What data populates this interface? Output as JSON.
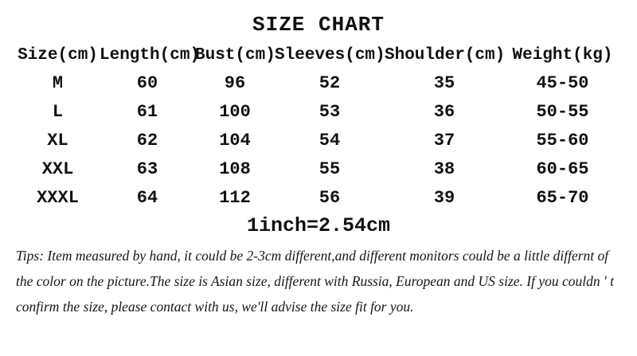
{
  "chart_data": {
    "type": "table",
    "title": "SIZE CHART",
    "columns": [
      "Size(cm)",
      "Length(cm)",
      "Bust(cm)",
      "Sleeves(cm)",
      "Shoulder(cm)",
      "Weight(kg)"
    ],
    "rows": [
      [
        "M",
        "60",
        "96",
        "52",
        "35",
        "45-50"
      ],
      [
        "L",
        "61",
        "100",
        "53",
        "36",
        "50-55"
      ],
      [
        "XL",
        "62",
        "104",
        "54",
        "37",
        "55-60"
      ],
      [
        "XXL",
        "63",
        "108",
        "55",
        "38",
        "60-65"
      ],
      [
        "XXXL",
        "64",
        "112",
        "56",
        "39",
        "65-70"
      ]
    ],
    "conversion_note": "1inch=2.54cm",
    "tips": "Tips: Item measured by hand, it could be 2-3cm different,and different monitors could be a little differnt of the color on the picture.The size is Asian size, different with Russia, European and US size. If you couldn ' t confirm the size, please contact with us, we'll advise the size fit for you."
  },
  "colors": {
    "text": "#111111",
    "background": "#ffffff"
  }
}
